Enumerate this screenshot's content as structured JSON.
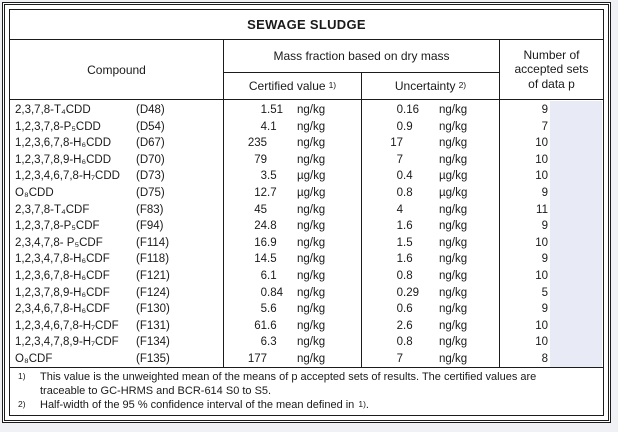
{
  "title": "SEWAGE SLUDGE",
  "header": {
    "compound": "Compound",
    "mass_fraction": "Mass fraction based on dry mass",
    "certified": "Certified value",
    "certified_ref": "1)",
    "uncertainty": "Uncertainty",
    "uncertainty_ref": "2)",
    "sets_lines": [
      "Number of",
      "accepted sets",
      "of data p"
    ]
  },
  "rows": [
    {
      "compound": "2,3,7,8-T₄CDD",
      "code": "(D48)",
      "certified": {
        "value": "1.51",
        "unit": "ng/kg"
      },
      "uncertainty": {
        "value": "0.16",
        "unit": "ng/kg"
      },
      "p": "9"
    },
    {
      "compound": "1,2,3,7,8-P₅CDD",
      "code": "(D54)",
      "certified": {
        "value": "4.1",
        "unit": "ng/kg"
      },
      "uncertainty": {
        "value": "0.9",
        "unit": "ng/kg"
      },
      "p": "7"
    },
    {
      "compound": "1,2,3,6,7,8-H₆CDD",
      "code": "(D67)",
      "certified": {
        "value": "235",
        "unit": "ng/kg"
      },
      "uncertainty": {
        "value": "17",
        "unit": "ng/kg"
      },
      "p": "10"
    },
    {
      "compound": "1,2,3,7,8,9-H₆CDD",
      "code": "(D70)",
      "certified": {
        "value": "79",
        "unit": "ng/kg"
      },
      "uncertainty": {
        "value": "7",
        "unit": "ng/kg"
      },
      "p": "10"
    },
    {
      "compound": "1,2,3,4,6,7,8-H₇CDD",
      "code": "(D73)",
      "certified": {
        "value": "3.5",
        "unit": "µg/kg"
      },
      "uncertainty": {
        "value": "0.4",
        "unit": "µg/kg"
      },
      "p": "10"
    },
    {
      "compound": "O₈CDD",
      "code": "(D75)",
      "certified": {
        "value": "12.7",
        "unit": "µg/kg"
      },
      "uncertainty": {
        "value": "0.8",
        "unit": "µg/kg"
      },
      "p": "9"
    },
    {
      "compound": "2,3,7,8-T₄CDF",
      "code": "(F83)",
      "certified": {
        "value": "45",
        "unit": "ng/kg"
      },
      "uncertainty": {
        "value": "4",
        "unit": "ng/kg"
      },
      "p": "11"
    },
    {
      "compound": "1,2,3,7,8-P₅CDF",
      "code": "(F94)",
      "certified": {
        "value": "24.8",
        "unit": "ng/kg"
      },
      "uncertainty": {
        "value": "1.6",
        "unit": "ng/kg"
      },
      "p": "9"
    },
    {
      "compound": "2,3,4,7,8- P₅CDF",
      "code": "(F114)",
      "certified": {
        "value": "16.9",
        "unit": "ng/kg"
      },
      "uncertainty": {
        "value": "1.5",
        "unit": "ng/kg"
      },
      "p": "10"
    },
    {
      "compound": "1,2,3,4,7,8-H₆CDF",
      "code": "(F118)",
      "certified": {
        "value": "14.5",
        "unit": "ng/kg"
      },
      "uncertainty": {
        "value": "1.6",
        "unit": "ng/kg"
      },
      "p": "9"
    },
    {
      "compound": "1,2,3,6,7,8-H₆CDF",
      "code": "(F121)",
      "certified": {
        "value": "6.1",
        "unit": "ng/kg"
      },
      "uncertainty": {
        "value": "0.8",
        "unit": "ng/kg"
      },
      "p": "10"
    },
    {
      "compound": "1,2,3,7,8,9-H₆CDF",
      "code": "(F124)",
      "certified": {
        "value": "0.84",
        "unit": "ng/kg"
      },
      "uncertainty": {
        "value": "0.29",
        "unit": "ng/kg"
      },
      "p": "5"
    },
    {
      "compound": "2,3,4,6,7,8-H₆CDF",
      "code": "(F130)",
      "certified": {
        "value": "5.6",
        "unit": "ng/kg"
      },
      "uncertainty": {
        "value": "0.6",
        "unit": "ng/kg"
      },
      "p": "9"
    },
    {
      "compound": "1,2,3,4,6,7,8-H₇CDF",
      "code": "(F131)",
      "certified": {
        "value": "61.6",
        "unit": "ng/kg"
      },
      "uncertainty": {
        "value": "2.6",
        "unit": "ng/kg"
      },
      "p": "10"
    },
    {
      "compound": "1,2,3,4,7,8,9-H₇CDF",
      "code": "(F134)",
      "certified": {
        "value": "6.3",
        "unit": "ng/kg"
      },
      "uncertainty": {
        "value": "0.8",
        "unit": "ng/kg"
      },
      "p": "10"
    },
    {
      "compound": "O₈CDF",
      "code": "(F135)",
      "certified": {
        "value": "177",
        "unit": "ng/kg"
      },
      "uncertainty": {
        "value": "7",
        "unit": "ng/kg"
      },
      "p": "8"
    }
  ],
  "footnotes": [
    {
      "marker": "1)",
      "lines": [
        "This value is the unweighted mean of the means of p accepted sets of results. The certified values are",
        "traceable to GC-HRMS and BCR-614 S0 to S5."
      ]
    },
    {
      "marker": "2)",
      "text": "Half-width of the 95 % confidence interval of the mean defined in ",
      "suffix_marker": "1)",
      "suffix": "."
    }
  ],
  "colors": {
    "highlight": "#e8ebf5",
    "line": "#1b1b1b"
  }
}
